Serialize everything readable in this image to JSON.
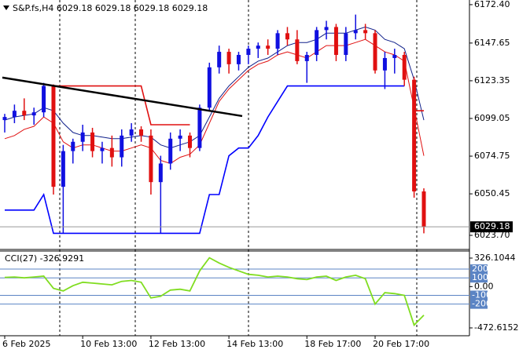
{
  "chart_data": [
    {
      "type": "candlestick",
      "title": "S&P.fs,H4  6029.18 6029.18 6029.18 6029.18",
      "categories": [
        "6 Feb 2025",
        null,
        null,
        null,
        null,
        null,
        null,
        null,
        "10 Feb 13:00",
        null,
        null,
        null,
        null,
        null,
        null,
        "12 Feb 13:00",
        null,
        null,
        null,
        null,
        null,
        null,
        null,
        "14 Feb 13:00",
        null,
        null,
        null,
        null,
        null,
        null,
        null,
        "18 Feb 17:00",
        null,
        null,
        null,
        null,
        null,
        null,
        "20 Feb 17:00",
        null,
        null,
        null,
        null,
        null
      ],
      "open": [
        6098,
        6100,
        6104,
        6101,
        6103,
        6120,
        6055,
        6078,
        6084,
        6090,
        6078,
        6080,
        6074,
        6088,
        6092,
        6088,
        6058,
        6070,
        6086,
        6088,
        6080,
        6106,
        6132,
        6142,
        6134,
        6140,
        6144,
        6146,
        6144,
        6154,
        6150,
        6136,
        6140,
        6156,
        6158,
        6140,
        6154,
        6156,
        6154,
        6130,
        6138,
        6140,
        6124,
        6052
      ],
      "high": [
        6102,
        6108,
        6112,
        6106,
        6122,
        6121,
        6082,
        6086,
        6095,
        6093,
        6084,
        6088,
        6092,
        6096,
        6094,
        6092,
        6075,
        6090,
        6092,
        6090,
        6108,
        6135,
        6146,
        6144,
        6142,
        6146,
        6148,
        6150,
        6156,
        6158,
        6156,
        6142,
        6158,
        6162,
        6160,
        6158,
        6166,
        6160,
        6156,
        6142,
        6144,
        6142,
        6126,
        6054
      ],
      "low": [
        6090,
        6096,
        6098,
        6095,
        6100,
        6050,
        6025,
        6070,
        6078,
        6074,
        6070,
        6068,
        6068,
        6084,
        6084,
        6050,
        6025,
        6066,
        6078,
        6074,
        6078,
        6104,
        6128,
        6128,
        6130,
        6134,
        6138,
        6140,
        6140,
        6146,
        6134,
        6122,
        6136,
        6150,
        6136,
        6136,
        6150,
        6150,
        6128,
        6118,
        6128,
        6120,
        6048,
        6025
      ],
      "close": [
        6100,
        6104,
        6101,
        6103,
        6120,
        6055,
        6078,
        6084,
        6090,
        6078,
        6080,
        6074,
        6088,
        6092,
        6088,
        6058,
        6070,
        6086,
        6088,
        6080,
        6106,
        6132,
        6142,
        6134,
        6140,
        6144,
        6146,
        6144,
        6154,
        6150,
        6136,
        6140,
        6156,
        6158,
        6140,
        6154,
        6156,
        6154,
        6130,
        6138,
        6140,
        6124,
        6052,
        6029.18
      ],
      "up_color": "#1010e0",
      "down_color": "#e01010",
      "overlays": [
        {
          "color": "#e01010",
          "values": [
            6086,
            6088,
            6092,
            6094,
            6100,
            6096,
            6084,
            6080,
            6082,
            6082,
            6080,
            6078,
            6078,
            6080,
            6082,
            6080,
            6072,
            6070,
            6074,
            6076,
            6082,
            6096,
            6110,
            6118,
            6124,
            6130,
            6134,
            6136,
            6140,
            6142,
            6140,
            6138,
            6142,
            6146,
            6146,
            6146,
            6148,
            6150,
            6146,
            6142,
            6140,
            6136,
            6106,
            6075
          ]
        },
        {
          "color": "#10208a",
          "values": [
            6098,
            6100,
            6101,
            6102,
            6106,
            6104,
            6096,
            6090,
            6088,
            6088,
            6087,
            6086,
            6086,
            6087,
            6088,
            6087,
            6082,
            6080,
            6082,
            6084,
            6088,
            6100,
            6112,
            6120,
            6126,
            6132,
            6136,
            6138,
            6142,
            6146,
            6148,
            6148,
            6150,
            6154,
            6154,
            6154,
            6156,
            6158,
            6156,
            6150,
            6148,
            6144,
            6124,
            6098
          ]
        },
        {
          "color": "#0000ff",
          "values": [
            6040,
            6040,
            6040,
            6040,
            6050,
            6025,
            6025,
            6025,
            6025,
            6025,
            6025,
            6025,
            6025,
            6025,
            6025,
            6025,
            6025,
            6025,
            6025,
            6025,
            6025,
            6050,
            6050,
            6075,
            6080,
            6080,
            6088,
            6100,
            6110,
            6120,
            6120,
            6120,
            6120,
            6120,
            6120,
            6120,
            6120,
            6120,
            6120,
            6120,
            6120,
            6120,
            null,
            null
          ]
        },
        {
          "color": "#e01010",
          "values": [
            null,
            null,
            null,
            null,
            null,
            6120,
            6120,
            6120,
            6120,
            6120,
            6120,
            6120,
            6120,
            6120,
            6120,
            6095,
            6095,
            6095,
            6095,
            6095,
            null,
            null,
            null,
            null,
            null,
            null,
            null,
            null,
            null,
            null,
            null,
            null,
            null,
            null,
            null,
            null,
            null,
            null,
            null,
            null,
            null,
            null,
            6104,
            6104
          ]
        }
      ],
      "trendline": {
        "color": "#000000",
        "values": [
          6125.4,
          6100.6
        ]
      },
      "last_price": 6029.18,
      "ylim": [
        6014.6,
        6175.4
      ],
      "yticks": [
        {
          "value": 6172.4,
          "label": "6172.40"
        },
        {
          "value": 6147.65,
          "label": "6147.65"
        },
        {
          "value": 6123.35,
          "label": "6123.35"
        },
        {
          "value": 6099.05,
          "label": "6099.05"
        },
        {
          "value": 6074.75,
          "label": "6074.75"
        },
        {
          "value": 6050.45,
          "label": "6050.45"
        },
        {
          "value": 6023.7,
          "label": "6023.70"
        }
      ]
    },
    {
      "type": "line",
      "title": "CCI(27) -326.9291",
      "color": "#80dd20",
      "values": [
        105,
        110,
        100,
        110,
        120,
        -20,
        -50,
        10,
        50,
        40,
        30,
        20,
        60,
        70,
        50,
        -130,
        -110,
        -40,
        -30,
        -50,
        180,
        330,
        270,
        220,
        180,
        140,
        130,
        110,
        120,
        110,
        90,
        80,
        110,
        120,
        70,
        110,
        130,
        90,
        -200,
        -70,
        -80,
        -100,
        -440,
        -326.9291
      ],
      "ylim": [
        -562.4,
        406.9
      ],
      "yticks": [
        326.1044,
        {
          "value": 0,
          "label": "0.00"
        },
        -472.6152
      ],
      "levels": [
        200,
        100,
        -100,
        -200
      ],
      "level_color": "#5b84c4"
    }
  ]
}
